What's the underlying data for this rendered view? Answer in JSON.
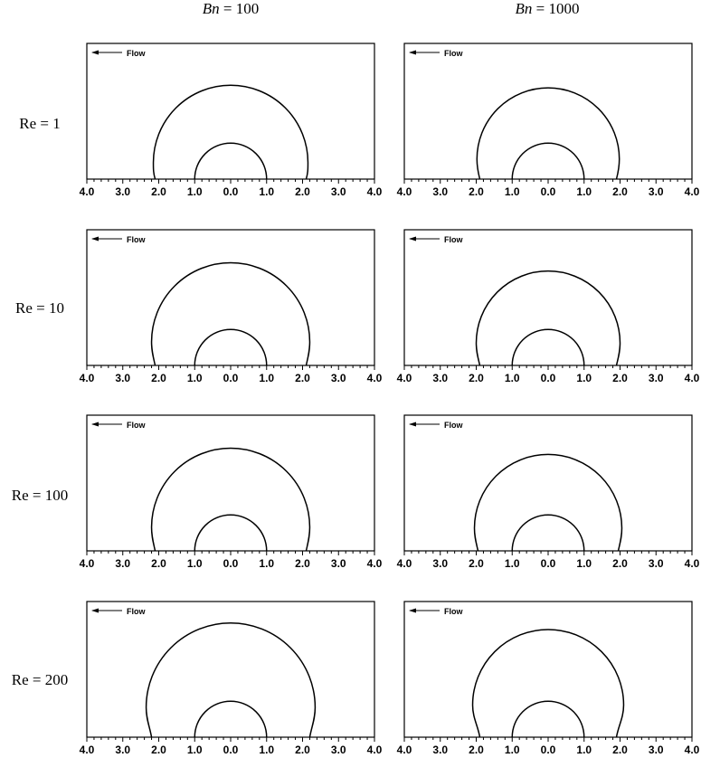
{
  "column_headers": [
    {
      "symbol": "Bn",
      "value": " = 100"
    },
    {
      "symbol": "Bn",
      "value": " = 1000"
    }
  ],
  "row_labels": [
    "Re = 1",
    "Re = 10",
    "Re = 100",
    "Re = 200"
  ],
  "flow_label": "Flow",
  "colors": {
    "line": "#000000",
    "background": "#ffffff"
  },
  "chart_data": {
    "type": "line",
    "layout": "4x2 panel grid",
    "x_range": [
      -4.0,
      4.0
    ],
    "x_tick_labels": [
      "4.0",
      "3.0",
      "2.0",
      "1.0",
      "0.0",
      "1.0",
      "2.0",
      "3.0",
      "4.0"
    ],
    "minor_tick_step": 0.2,
    "grid": false,
    "annotation": "Flow",
    "panels": [
      {
        "row": "Re = 1",
        "column": "Bn = 100",
        "cylinder_radius": 1.0,
        "envelope_radius": 2.15,
        "envelope_base_halfwidth": 2.1
      },
      {
        "row": "Re = 1",
        "column": "Bn = 1000",
        "cylinder_radius": 1.0,
        "envelope_radius": 1.98,
        "envelope_base_halfwidth": 1.9
      },
      {
        "row": "Re = 10",
        "column": "Bn = 100",
        "cylinder_radius": 1.0,
        "envelope_radius": 2.2,
        "envelope_base_halfwidth": 2.1
      },
      {
        "row": "Re = 10",
        "column": "Bn = 1000",
        "cylinder_radius": 1.0,
        "envelope_radius": 2.0,
        "envelope_base_halfwidth": 1.9
      },
      {
        "row": "Re = 100",
        "column": "Bn = 100",
        "cylinder_radius": 1.0,
        "envelope_radius": 2.2,
        "envelope_base_halfwidth": 2.1
      },
      {
        "row": "Re = 100",
        "column": "Bn = 1000",
        "cylinder_radius": 1.0,
        "envelope_radius": 2.05,
        "envelope_base_halfwidth": 1.95
      },
      {
        "row": "Re = 200",
        "column": "Bn = 100",
        "cylinder_radius": 1.0,
        "envelope_radius": 2.35,
        "envelope_base_halfwidth": 2.2
      },
      {
        "row": "Re = 200",
        "column": "Bn = 1000",
        "cylinder_radius": 1.0,
        "envelope_radius": 2.1,
        "envelope_base_halfwidth": 1.9
      }
    ]
  }
}
